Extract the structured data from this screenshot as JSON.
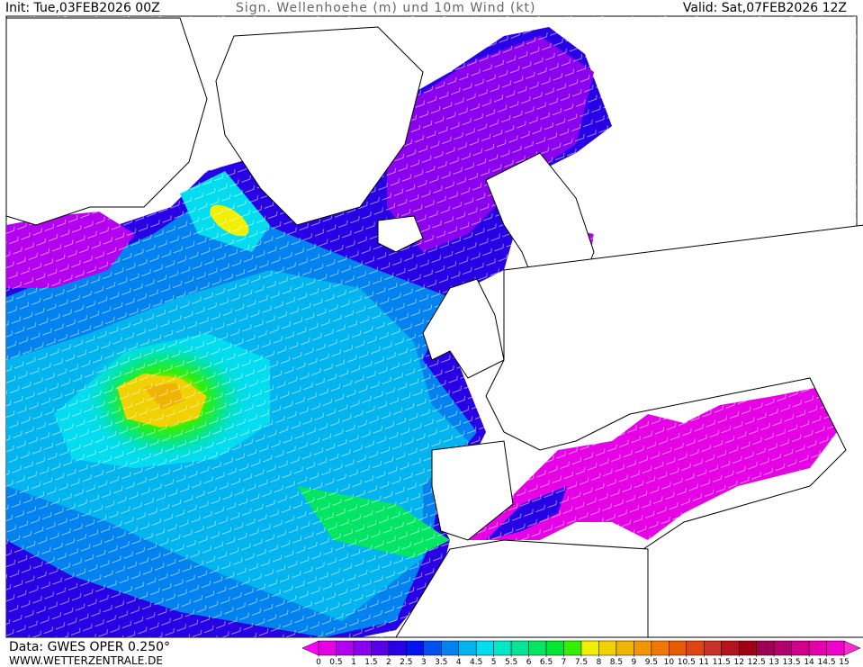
{
  "header": {
    "init": "Init: Tue,03FEB2026 00Z",
    "title": "Sign. Wellenhoehe (m) und 10m Wind (kt)",
    "valid": "Valid: Sat,07FEB2026 12Z"
  },
  "footer": {
    "data": "Data: GWES OPER 0.250°",
    "site": "WWW.WETTERZENTRALE.DE"
  },
  "legend": {
    "ticks": [
      0,
      0.5,
      1,
      1.5,
      2,
      2.5,
      3,
      3.5,
      4,
      4.5,
      5,
      5.5,
      6,
      6.5,
      7,
      7.5,
      8,
      8.5,
      9,
      9.5,
      10,
      10.5,
      11,
      11.5,
      12,
      12.5,
      13,
      13.5,
      14,
      14.5,
      15
    ],
    "colors": [
      "#e600e6",
      "#b400f0",
      "#8c00f0",
      "#5a00e6",
      "#2800e6",
      "#0014f0",
      "#0050f0",
      "#0082f0",
      "#00b4f0",
      "#00dcf0",
      "#00e6c8",
      "#00e696",
      "#00e664",
      "#00e632",
      "#32f000",
      "#f0f000",
      "#f0d200",
      "#f0b400",
      "#f09600",
      "#f07800",
      "#e65a00",
      "#dc4614",
      "#c83228",
      "#b4141e",
      "#a00014",
      "#a00050",
      "#b4006e",
      "#d2008c",
      "#e600aa",
      "#f000c8"
    ],
    "under_color": "#ff00ff",
    "over_color": "#ff2ad2"
  }
}
